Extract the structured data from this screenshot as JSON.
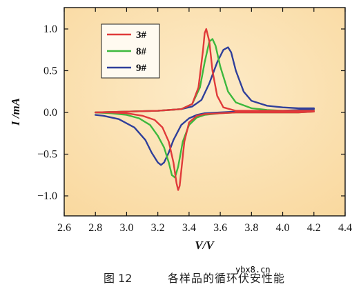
{
  "caption": {
    "number": "图 12",
    "title": "各样品的循环伏安性能"
  },
  "watermark": "ybx8.cn",
  "chart_data": {
    "type": "line",
    "xlabel": "V/V",
    "ylabel": "I /mA",
    "xlim": [
      2.6,
      4.4
    ],
    "ylim": [
      -1.2,
      1.2
    ],
    "xticks": [
      2.6,
      2.8,
      3.0,
      3.2,
      3.4,
      3.6,
      3.8,
      4.0,
      4.2,
      4.4
    ],
    "xtick_labels": [
      "2.6",
      "2.8",
      "3.0",
      "3.2",
      "3.4",
      "3.6",
      "3.8",
      "4.0",
      "4.2",
      "4.4"
    ],
    "yticks": [
      1.0,
      0.5,
      0.0,
      -0.5,
      -1.0
    ],
    "ytick_labels": [
      "1.0",
      "0.5",
      "0.0",
      "−0.5",
      "−1.0"
    ],
    "grid": false,
    "legend_position": "top-left",
    "background": "#fbe2b3",
    "series": [
      {
        "name": "3#",
        "color": "#e03a3a",
        "x": [
          2.8,
          3.0,
          3.2,
          3.35,
          3.42,
          3.46,
          3.49,
          3.5,
          3.51,
          3.53,
          3.55,
          3.58,
          3.62,
          3.7,
          3.8,
          3.9,
          4.0,
          4.1,
          4.2,
          4.2,
          4.1,
          4.0,
          3.9,
          3.8,
          3.7,
          3.6,
          3.5,
          3.45,
          3.4,
          3.37,
          3.35,
          3.34,
          3.33,
          3.32,
          3.3,
          3.27,
          3.23,
          3.18,
          3.1,
          3.0,
          2.9,
          2.8
        ],
        "y": [
          0.0,
          0.01,
          0.02,
          0.04,
          0.1,
          0.3,
          0.75,
          0.95,
          1.0,
          0.85,
          0.5,
          0.2,
          0.06,
          0.02,
          0.02,
          0.02,
          0.02,
          0.02,
          0.02,
          0.01,
          0.0,
          0.0,
          0.0,
          0.0,
          0.0,
          -0.01,
          -0.02,
          -0.04,
          -0.12,
          -0.35,
          -0.7,
          -0.88,
          -0.93,
          -0.85,
          -0.6,
          -0.35,
          -0.18,
          -0.09,
          -0.04,
          -0.01,
          0.0,
          0.0
        ]
      },
      {
        "name": "8#",
        "color": "#3db83d",
        "x": [
          2.8,
          3.0,
          3.2,
          3.35,
          3.42,
          3.47,
          3.5,
          3.53,
          3.55,
          3.57,
          3.6,
          3.65,
          3.7,
          3.8,
          3.9,
          4.0,
          4.1,
          4.2,
          4.2,
          4.1,
          4.0,
          3.9,
          3.8,
          3.7,
          3.6,
          3.5,
          3.45,
          3.4,
          3.36,
          3.33,
          3.31,
          3.29,
          3.27,
          3.24,
          3.2,
          3.15,
          3.08,
          3.0,
          2.9,
          2.8
        ],
        "y": [
          0.0,
          0.01,
          0.02,
          0.04,
          0.1,
          0.3,
          0.6,
          0.85,
          0.88,
          0.8,
          0.55,
          0.25,
          0.12,
          0.05,
          0.03,
          0.02,
          0.02,
          0.02,
          0.01,
          0.0,
          0.0,
          0.0,
          0.0,
          0.0,
          -0.01,
          -0.03,
          -0.06,
          -0.15,
          -0.35,
          -0.65,
          -0.78,
          -0.75,
          -0.6,
          -0.42,
          -0.28,
          -0.15,
          -0.07,
          -0.03,
          -0.01,
          0.0
        ]
      },
      {
        "name": "9#",
        "color": "#2f3f9a",
        "x": [
          2.8,
          3.0,
          3.2,
          3.35,
          3.42,
          3.48,
          3.53,
          3.58,
          3.62,
          3.65,
          3.67,
          3.7,
          3.75,
          3.8,
          3.9,
          4.0,
          4.1,
          4.2,
          4.2,
          4.1,
          4.0,
          3.9,
          3.8,
          3.7,
          3.6,
          3.5,
          3.45,
          3.4,
          3.35,
          3.3,
          3.27,
          3.24,
          3.22,
          3.2,
          3.16,
          3.12,
          3.05,
          2.95,
          2.85,
          2.8
        ],
        "y": [
          0.0,
          0.01,
          0.02,
          0.04,
          0.07,
          0.15,
          0.35,
          0.6,
          0.75,
          0.78,
          0.72,
          0.5,
          0.25,
          0.14,
          0.08,
          0.06,
          0.05,
          0.05,
          0.04,
          0.03,
          0.02,
          0.02,
          0.01,
          0.01,
          0.0,
          -0.01,
          -0.03,
          -0.07,
          -0.15,
          -0.33,
          -0.48,
          -0.6,
          -0.63,
          -0.6,
          -0.48,
          -0.33,
          -0.18,
          -0.08,
          -0.04,
          -0.03
        ]
      }
    ]
  }
}
